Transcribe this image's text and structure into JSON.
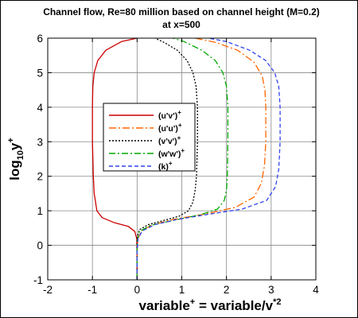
{
  "chart_data": {
    "type": "line",
    "title": "Channel flow, Re=80 million based on channel height (M=0.2)",
    "subtitle": "at x=500",
    "xlabel": {
      "prefix": "variable",
      "sup1": "+",
      "mid": " = variable/v",
      "sup2": "*2"
    },
    "ylabel": {
      "prefix": "log",
      "sub": "10",
      "mid": "y",
      "sup": "+"
    },
    "xlim": [
      -2,
      4
    ],
    "ylim": [
      -1,
      6
    ],
    "xticks": [
      "-2",
      "-1",
      "0",
      "1",
      "2",
      "3",
      "4"
    ],
    "yticks": [
      "-1",
      "0",
      "1",
      "2",
      "3",
      "4",
      "5",
      "6"
    ],
    "grid": true,
    "legend_position": "center-left",
    "series": [
      {
        "name": "(u'v')",
        "sup": "+",
        "color": "#cc0000",
        "dash": "",
        "points": [
          [
            0,
            -1
          ],
          [
            0,
            -0.2
          ],
          [
            -0.01,
            0.2
          ],
          [
            -0.05,
            0.4
          ],
          [
            -0.2,
            0.55
          ],
          [
            -0.5,
            0.65
          ],
          [
            -0.78,
            0.8
          ],
          [
            -0.9,
            1.0
          ],
          [
            -0.96,
            1.5
          ],
          [
            -0.98,
            2.0
          ],
          [
            -1.0,
            3.0
          ],
          [
            -1.0,
            4.0
          ],
          [
            -0.99,
            4.6
          ],
          [
            -0.96,
            5.0
          ],
          [
            -0.88,
            5.35
          ],
          [
            -0.7,
            5.65
          ],
          [
            -0.35,
            5.9
          ],
          [
            0,
            6.0
          ]
        ]
      },
      {
        "name": "(u'u')",
        "sup": "+",
        "color": "#ff6600",
        "dash": "9,3,2,3",
        "points": [
          [
            0,
            -1
          ],
          [
            0,
            -0.2
          ],
          [
            0.02,
            0.2
          ],
          [
            0.1,
            0.42
          ],
          [
            0.35,
            0.6
          ],
          [
            0.8,
            0.75
          ],
          [
            1.5,
            0.9
          ],
          [
            2.2,
            1.1
          ],
          [
            2.62,
            1.4
          ],
          [
            2.78,
            1.8
          ],
          [
            2.85,
            2.3
          ],
          [
            2.88,
            3.0
          ],
          [
            2.88,
            4.0
          ],
          [
            2.86,
            4.5
          ],
          [
            2.8,
            4.9
          ],
          [
            2.62,
            5.3
          ],
          [
            2.25,
            5.65
          ],
          [
            1.75,
            5.88
          ],
          [
            1.3,
            6.0
          ]
        ]
      },
      {
        "name": "(v'v')",
        "sup": "+",
        "color": "#000000",
        "dash": "2,2",
        "points": [
          [
            0,
            -1
          ],
          [
            0,
            0.2
          ],
          [
            0.05,
            0.45
          ],
          [
            0.25,
            0.6
          ],
          [
            0.6,
            0.72
          ],
          [
            0.95,
            0.85
          ],
          [
            1.15,
            1.0
          ],
          [
            1.25,
            1.25
          ],
          [
            1.3,
            1.6
          ],
          [
            1.33,
            2.0
          ],
          [
            1.35,
            3.0
          ],
          [
            1.35,
            4.0
          ],
          [
            1.32,
            4.6
          ],
          [
            1.25,
            5.0
          ],
          [
            1.12,
            5.35
          ],
          [
            0.9,
            5.65
          ],
          [
            0.6,
            5.88
          ],
          [
            0.4,
            6.0
          ]
        ]
      },
      {
        "name": "(w'w')",
        "sup": "+",
        "color": "#00aa00",
        "dash": "8,3,2,3",
        "points": [
          [
            0,
            -1
          ],
          [
            0,
            0.1
          ],
          [
            0.05,
            0.4
          ],
          [
            0.3,
            0.58
          ],
          [
            0.8,
            0.72
          ],
          [
            1.4,
            0.88
          ],
          [
            1.8,
            1.05
          ],
          [
            1.95,
            1.3
          ],
          [
            2.0,
            1.6
          ],
          [
            2.02,
            2.0
          ],
          [
            2.03,
            3.0
          ],
          [
            2.03,
            4.0
          ],
          [
            2.0,
            4.6
          ],
          [
            1.92,
            5.0
          ],
          [
            1.75,
            5.35
          ],
          [
            1.45,
            5.65
          ],
          [
            1.05,
            5.9
          ],
          [
            0.8,
            6.0
          ]
        ]
      },
      {
        "name": "(k)",
        "sup": "+",
        "color": "#3344ee",
        "dash": "5,3",
        "points": [
          [
            0,
            -1
          ],
          [
            0,
            -0.2
          ],
          [
            0.02,
            0.2
          ],
          [
            0.12,
            0.42
          ],
          [
            0.4,
            0.6
          ],
          [
            0.9,
            0.75
          ],
          [
            1.6,
            0.9
          ],
          [
            2.35,
            1.05
          ],
          [
            2.9,
            1.3
          ],
          [
            3.1,
            1.7
          ],
          [
            3.17,
            2.2
          ],
          [
            3.2,
            3.0
          ],
          [
            3.2,
            4.0
          ],
          [
            3.17,
            4.6
          ],
          [
            3.08,
            5.0
          ],
          [
            2.88,
            5.35
          ],
          [
            2.52,
            5.65
          ],
          [
            2.0,
            5.9
          ],
          [
            1.6,
            6.0
          ]
        ]
      }
    ]
  }
}
